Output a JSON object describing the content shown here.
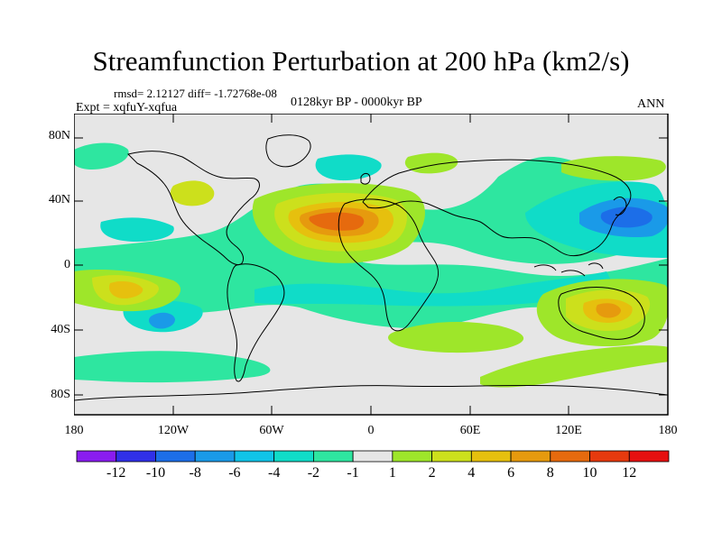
{
  "title": "Streamfunction Perturbation at 200 hPa (km2/s)",
  "stats": "rmsd= 2.12127  diff= -1.72768e-08",
  "experiment": "Expt = xqfuY-xqfua",
  "period": "0128kyr BP - 0000kyr BP",
  "season": "ANN",
  "y_axis_labels": [
    "80N",
    "40N",
    "0",
    "40S",
    "80S"
  ],
  "x_axis_labels": [
    "180",
    "120W",
    "60W",
    "0",
    "60E",
    "120E",
    "180"
  ],
  "colorbar": {
    "labels": [
      "-12",
      "-10",
      "-8",
      "-6",
      "-4",
      "-2",
      "-1",
      "1",
      "2",
      "4",
      "6",
      "8",
      "10",
      "12"
    ],
    "colors": [
      "#8a1cf0",
      "#3030e8",
      "#1c6ee8",
      "#1a9ae8",
      "#10c4e8",
      "#10dcc8",
      "#2ee6a0",
      "#e6e6e6",
      "#9ee62a",
      "#cce01c",
      "#e6c00e",
      "#e69a0e",
      "#e66a0e",
      "#e63a0e",
      "#e61010"
    ]
  },
  "colors": {
    "background": "#e6e6e6",
    "coastline": "#000000"
  }
}
